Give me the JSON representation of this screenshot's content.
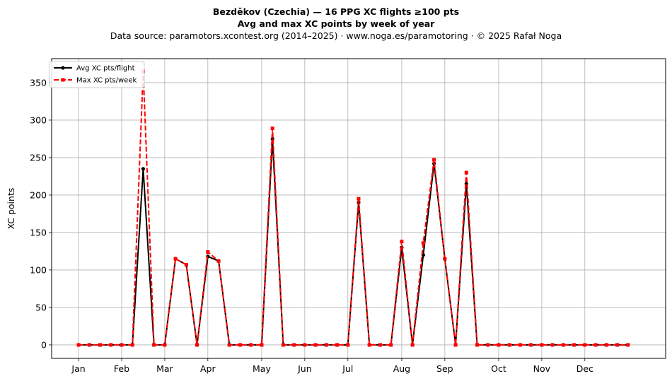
{
  "chart_data": {
    "type": "line",
    "title": "Bezděkov (Czechia)  —  16 PPG XC flights ≥100 pts",
    "subtitle": "Avg and max XC points by week of year",
    "source": "Data source: paramotors.xcontest.org (2014–2025)  ·  www.noga.es/paramotoring  ·  © 2025 Rafał Noga",
    "xlabel": "",
    "ylabel": "XC points",
    "ylim": [
      -18,
      382
    ],
    "xlim": [
      -2.5,
      54.5
    ],
    "grid": true,
    "legend_position": "top-left",
    "yticks": [
      0,
      50,
      100,
      150,
      200,
      250,
      300,
      350
    ],
    "xticks": [
      {
        "label": "Jan",
        "week": 0
      },
      {
        "label": "Feb",
        "week": 4
      },
      {
        "label": "Mar",
        "week": 8
      },
      {
        "label": "Apr",
        "week": 12
      },
      {
        "label": "May",
        "week": 17
      },
      {
        "label": "Jun",
        "week": 21
      },
      {
        "label": "Jul",
        "week": 25
      },
      {
        "label": "Aug",
        "week": 30
      },
      {
        "label": "Sep",
        "week": 34
      },
      {
        "label": "Oct",
        "week": 39
      },
      {
        "label": "Nov",
        "week": 43
      },
      {
        "label": "Dec",
        "week": 47
      }
    ],
    "x": [
      0,
      1,
      2,
      3,
      4,
      5,
      6,
      7,
      8,
      9,
      10,
      11,
      12,
      13,
      14,
      15,
      16,
      17,
      18,
      19,
      20,
      21,
      22,
      23,
      24,
      25,
      26,
      27,
      28,
      29,
      30,
      31,
      32,
      33,
      34,
      35,
      36,
      37,
      38,
      39,
      40,
      41,
      42,
      43,
      44,
      45,
      46,
      47,
      48,
      49,
      50,
      51
    ],
    "series": [
      {
        "name": "Avg XC pts/flight",
        "color": "#000000",
        "style": "solid",
        "marker": "circle",
        "values": [
          0,
          0,
          0,
          0,
          0,
          0,
          235,
          0,
          0,
          115,
          107,
          0,
          118,
          112,
          0,
          0,
          0,
          0,
          275,
          0,
          0,
          0,
          0,
          0,
          0,
          0,
          190,
          0,
          0,
          0,
          130,
          0,
          120,
          242,
          115,
          0,
          215,
          0,
          0,
          0,
          0,
          0,
          0,
          0,
          0,
          0,
          0,
          0,
          0,
          0,
          0,
          0
        ]
      },
      {
        "name": "Max XC pts/week",
        "color": "#ff0000",
        "style": "dashed",
        "marker": "square",
        "values": [
          0,
          0,
          0,
          0,
          0,
          0,
          365,
          0,
          0,
          115,
          107,
          0,
          124,
          112,
          0,
          0,
          0,
          0,
          289,
          0,
          0,
          0,
          0,
          0,
          0,
          0,
          195,
          0,
          0,
          0,
          138,
          0,
          136,
          247,
          115,
          0,
          230,
          0,
          0,
          0,
          0,
          0,
          0,
          0,
          0,
          0,
          0,
          0,
          0,
          0,
          0,
          0
        ]
      }
    ]
  }
}
